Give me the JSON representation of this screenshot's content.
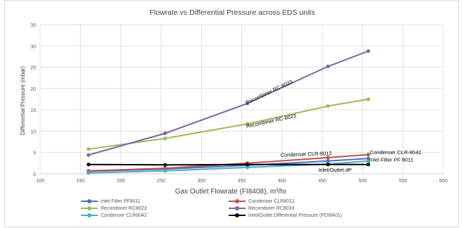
{
  "chart_data": {
    "type": "line",
    "title": "Flowrate vs Differential Pressure across EDS units",
    "xlabel": "Gas Outlet Flowrate (FI8408), m³/hr",
    "ylabel": "Differential Pressure (mbar)",
    "xlim": [
      100,
      600
    ],
    "ylim": [
      0,
      35
    ],
    "xticks": [
      100,
      150,
      200,
      250,
      300,
      350,
      400,
      450,
      500,
      550,
      600
    ],
    "yticks": [
      0,
      5,
      10,
      15,
      20,
      25,
      30,
      35
    ],
    "grid": true,
    "legend_position": "bottom",
    "series": [
      {
        "name": "Inlet Filter PF8011",
        "color": "#4472c4",
        "x": [
          160,
          255,
          357,
          457,
          507
        ],
        "y": [
          0.6,
          1.1,
          2.0,
          3.0,
          3.6
        ]
      },
      {
        "name": "Condenser CLR8012",
        "color": "#c0504d",
        "x": [
          160,
          255,
          357,
          457,
          507
        ],
        "y": [
          0.7,
          1.3,
          2.5,
          3.8,
          4.5
        ]
      },
      {
        "name": "Recombiner RC8023",
        "color": "#9bbb59",
        "x": [
          160,
          255,
          357,
          457,
          507
        ],
        "y": [
          5.8,
          8.3,
          11.7,
          15.9,
          17.5
        ]
      },
      {
        "name": "Recombiner RC8033",
        "color": "#8064a2",
        "x": [
          160,
          255,
          357,
          457,
          507
        ],
        "y": [
          4.4,
          9.5,
          16.5,
          25.2,
          28.8
        ]
      },
      {
        "name": "Condenser CLR8042",
        "color": "#4bacc6",
        "x": [
          160,
          255,
          357,
          457,
          507
        ],
        "y": [
          0.2,
          0.7,
          1.5,
          2.3,
          3.0
        ]
      },
      {
        "name": "Inlet/Outlet Differential Pressure (PDI8401)",
        "color": "#000000",
        "x": [
          160,
          255,
          357,
          457,
          507
        ],
        "y": [
          2.2,
          2.1,
          2.2,
          2.2,
          2.2
        ]
      }
    ],
    "annotations": [
      {
        "text": "Recombiner RC-8033",
        "x": 385,
        "y": 18.8,
        "angle": -25
      },
      {
        "text": "Recombiner RC-8023",
        "x": 387,
        "y": 12.0,
        "angle": -12
      },
      {
        "text": "Condenser CLR-8012",
        "x": 430,
        "y": 4.2,
        "angle": -2
      },
      {
        "text": "Condenser CLR-8042",
        "x": 509,
        "y": 4.6,
        "angle": 0
      },
      {
        "text": "Inlet Filter PF 8011",
        "x": 508,
        "y": 2.9,
        "angle": 0
      },
      {
        "text": "Inlet/Outlet dP",
        "x": 445,
        "y": 0.5,
        "angle": 0
      }
    ]
  }
}
